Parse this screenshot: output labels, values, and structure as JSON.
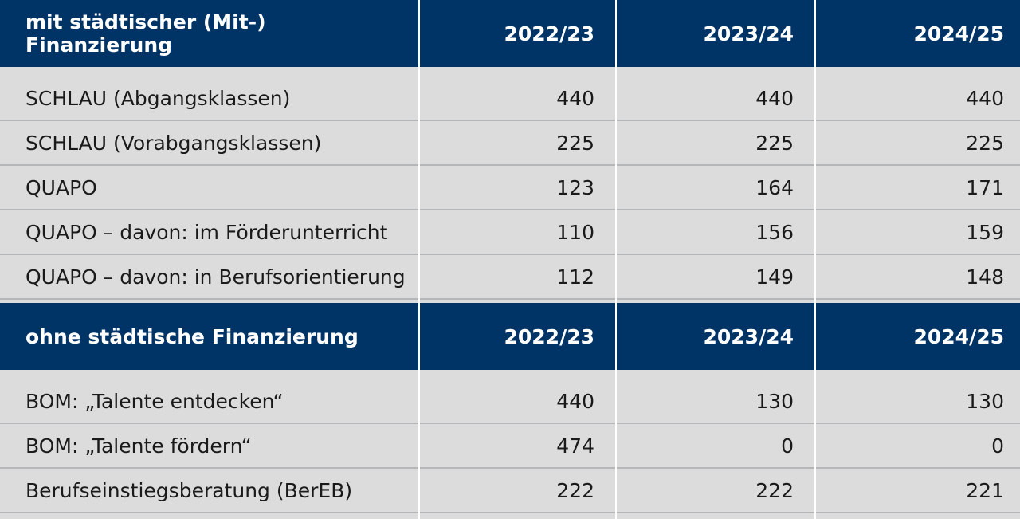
{
  "sections": [
    {
      "title": "mit städtischer (Mit-) Finanzierung",
      "years": [
        "2022/23",
        "2023/24",
        "2024/25"
      ],
      "rows": [
        {
          "label": "SCHLAU  (Abgangsklassen)",
          "values": [
            "440",
            "440",
            "440"
          ]
        },
        {
          "label": "SCHLAU (Vorabgangsklassen)",
          "values": [
            "225",
            "225",
            "225"
          ]
        },
        {
          "label": "QUAPO",
          "values": [
            "123",
            "164",
            "171"
          ]
        },
        {
          "label": "QUAPO – davon: im Förderunterricht",
          "values": [
            "110",
            "156",
            "159"
          ]
        },
        {
          "label": "QUAPO – davon: in Berufsorientierung",
          "values": [
            "112",
            "149",
            "148"
          ]
        }
      ]
    },
    {
      "title": "ohne städtische Finanzierung",
      "years": [
        "2022/23",
        "2023/24",
        "2024/25"
      ],
      "rows": [
        {
          "label": "BOM: „Talente entdecken“",
          "values": [
            "440",
            "130",
            "130"
          ]
        },
        {
          "label": "BOM: „Talente fördern“",
          "values": [
            "474",
            "0",
            "0"
          ]
        },
        {
          "label": "Berufseinstiegsberatung (BerEB)",
          "values": [
            "222",
            "222",
            "221"
          ]
        }
      ]
    }
  ],
  "colors": {
    "header_bg": "#003366",
    "header_text": "#ffffff",
    "body_bg": "#dcdcdd",
    "row_divider": "#b5b6b8"
  }
}
